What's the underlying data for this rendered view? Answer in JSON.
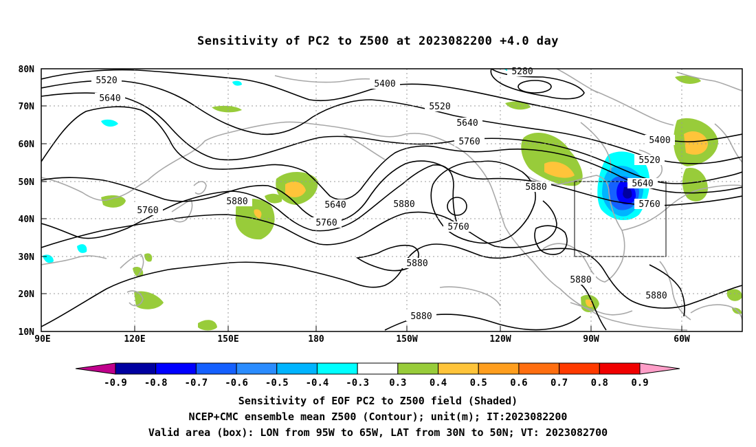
{
  "title": "Sensitivity of PC2 to Z500 at 2023082200 +4.0 day",
  "lat_labels": [
    "80N",
    "70N",
    "60N",
    "50N",
    "40N",
    "30N",
    "20N",
    "10N"
  ],
  "lon_labels": [
    "90E",
    "120E",
    "150E",
    "180",
    "150W",
    "120W",
    "90W",
    "60W"
  ],
  "contour_labels": {
    "c5520a": "5520",
    "c5640a": "5640",
    "c5280": "5280",
    "c5400a": "5400",
    "c5520b": "5520",
    "c5640b": "5640",
    "c5760a": "5760",
    "c5400b": "5400",
    "c5520c": "5520",
    "c5640c": "5640",
    "c5760b": "5760",
    "c5760c": "5760",
    "c5880a": "5880",
    "c5640d": "5640",
    "c5760d": "5760",
    "c5880b": "5880",
    "c5760e": "5760",
    "c5880c": "5880",
    "c5880d": "5880",
    "c5880e": "5880",
    "c5880f": "5880",
    "c5880g": "5880"
  },
  "colorbar": {
    "labels": [
      "-0.9",
      "-0.8",
      "-0.7",
      "-0.6",
      "-0.5",
      "-0.4",
      "-0.3",
      "0.3",
      "0.4",
      "0.5",
      "0.6",
      "0.7",
      "0.8",
      "0.9"
    ],
    "colors": [
      "#0000a0",
      "#0000ff",
      "#1560ff",
      "#2a8cff",
      "#00b4ff",
      "#00ffff",
      "#ffffff",
      "#98cc3a",
      "#ffc43a",
      "#ff9e1e",
      "#ff6e10",
      "#ff3a00",
      "#f00000"
    ],
    "low_color": "#c0008c",
    "high_color": "#ff9ec8"
  },
  "valid_box": {
    "lon_range": [
      "95W",
      "65W"
    ],
    "lat_range": [
      "30N",
      "50N"
    ]
  },
  "caption": {
    "line1": "Sensitivity of EOF PC2 to Z500 field (Shaded)",
    "line2": "NCEP+CMC ensemble mean Z500 (Contour); unit(m); IT:2023082200",
    "line3": "Valid area (box): LON from 95W to 65W, LAT from 30N to 50N; VT: 2023082700"
  }
}
